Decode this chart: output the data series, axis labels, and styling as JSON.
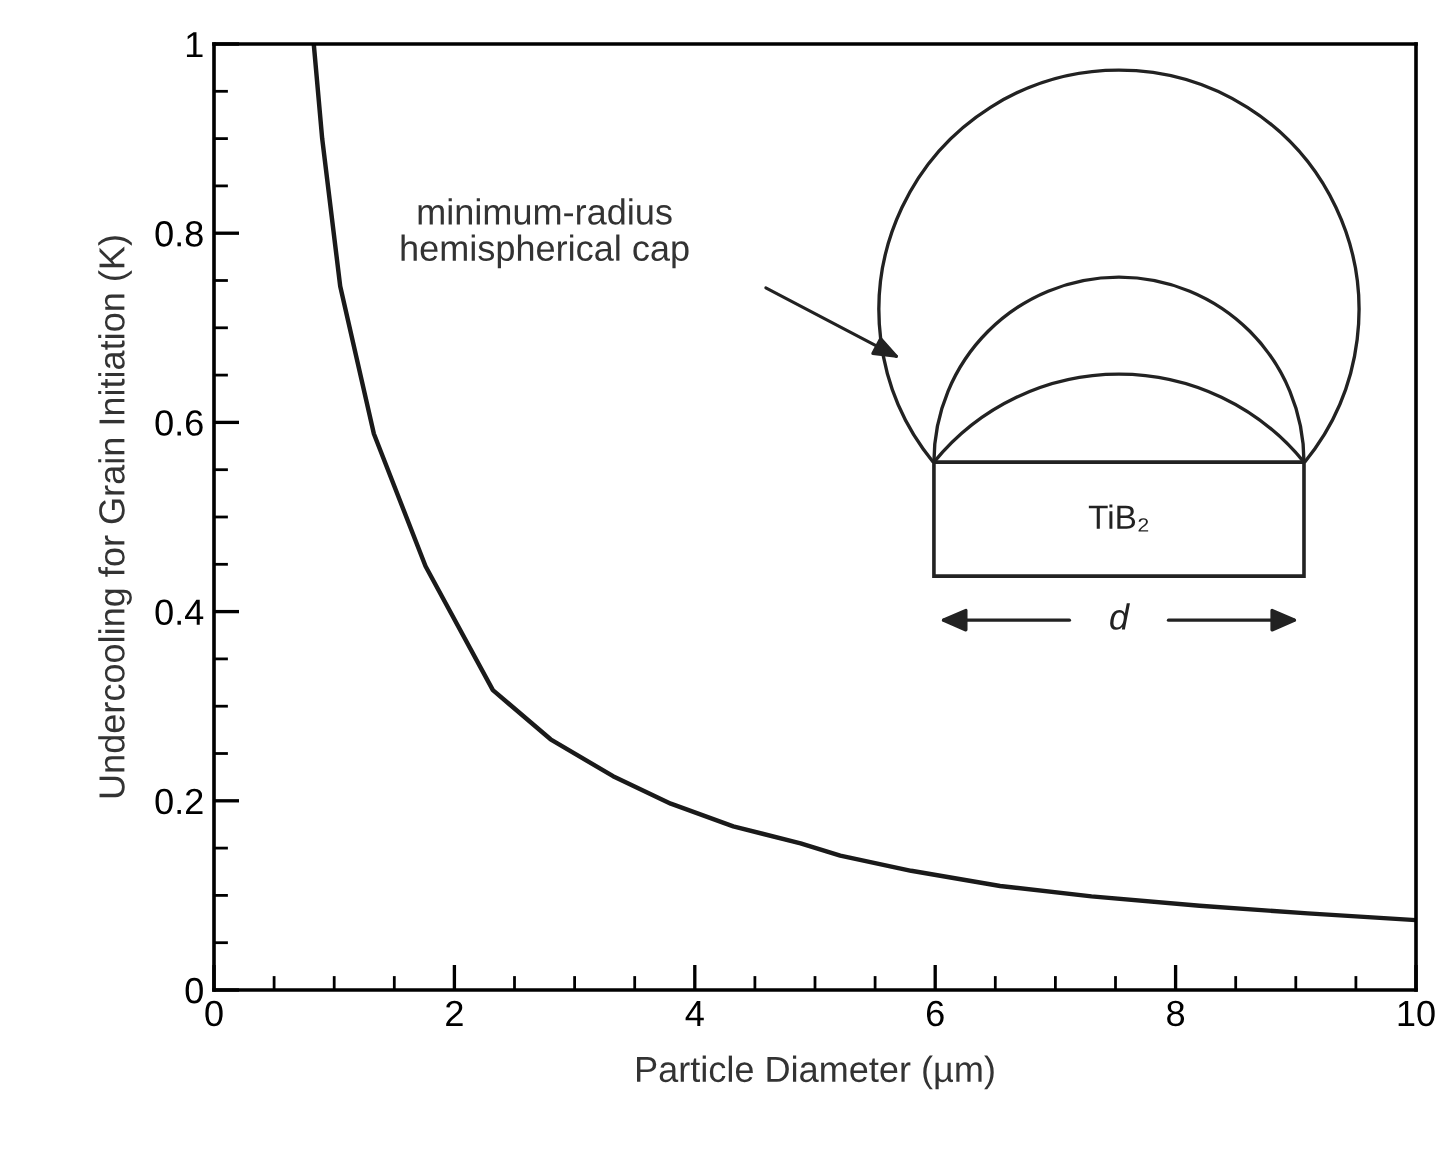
{
  "chart_data": {
    "type": "line",
    "xlabel": "Particle Diameter (µm)",
    "ylabel": "Undercooling for Grain Initiation (K)",
    "x": [
      0.83,
      0.9,
      1.05,
      1.33,
      1.76,
      2.32,
      2.8,
      3.32,
      3.8,
      4.32,
      4.88,
      5.21,
      5.8,
      6.54,
      7.3,
      8.2,
      9.1,
      9.98
    ],
    "series": [
      {
        "color": "#1a1a1a",
        "values": [
          1.0,
          0.9,
          0.744,
          0.588,
          0.448,
          0.317,
          0.265,
          0.226,
          0.197,
          0.173,
          0.155,
          0.142,
          0.126,
          0.11,
          0.099,
          0.089,
          0.081,
          0.074
        ]
      }
    ],
    "xlim": [
      0,
      10
    ],
    "xticks": [
      0,
      {
        "value": 0.5,
        "label": null
      },
      {
        "value": 1,
        "label": null
      },
      {
        "value": 1.5,
        "label": null
      },
      2,
      {
        "value": 2.5,
        "label": null
      },
      {
        "value": 3,
        "label": null
      },
      {
        "value": 3.5,
        "label": null
      },
      4,
      {
        "value": 4.5,
        "label": null
      },
      {
        "value": 5,
        "label": null
      },
      {
        "value": 5.5,
        "label": null
      },
      6,
      {
        "value": 6.5,
        "label": null
      },
      {
        "value": 7,
        "label": null
      },
      {
        "value": 7.5,
        "label": null
      },
      8,
      {
        "value": 8.5,
        "label": null
      },
      {
        "value": 9,
        "label": null
      },
      {
        "value": 9.5,
        "label": null
      },
      10
    ],
    "ylim": [
      0,
      1
    ],
    "yticks": [
      0,
      {
        "value": 0.05,
        "label": null
      },
      {
        "value": 0.1,
        "label": null
      },
      {
        "value": 0.15,
        "label": null
      },
      0.2,
      {
        "value": 0.25,
        "label": null
      },
      {
        "value": 0.3,
        "label": null
      },
      {
        "value": 0.35,
        "label": null
      },
      0.4,
      {
        "value": 0.45,
        "label": null
      },
      {
        "value": 0.5,
        "label": null
      },
      {
        "value": 0.55,
        "label": null
      },
      0.6,
      {
        "value": 0.65,
        "label": null
      },
      {
        "value": 0.7,
        "label": null
      },
      {
        "value": 0.75,
        "label": null
      },
      0.8,
      {
        "value": 0.85,
        "label": null
      },
      {
        "value": 0.9,
        "label": null
      },
      {
        "value": 0.95,
        "label": null
      },
      1
    ],
    "grid": false,
    "marker": "none",
    "line_style": "solid",
    "annotations": [
      "minimum-radius\nhemispherical cap",
      "TiB₂",
      "d"
    ]
  }
}
